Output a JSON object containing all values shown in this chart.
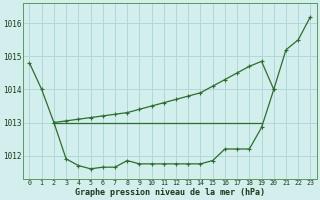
{
  "xlabel": "Graphe pression niveau de la mer (hPa)",
  "background_color": "#d2eeed",
  "grid_color": "#b0d8d8",
  "line_color": "#2d6e2d",
  "hours": [
    0,
    1,
    2,
    3,
    4,
    5,
    6,
    7,
    8,
    9,
    10,
    11,
    12,
    13,
    14,
    15,
    16,
    17,
    18,
    19,
    20,
    21,
    22,
    23
  ],
  "line_flat": [
    null,
    null,
    1013.0,
    1013.0,
    1013.0,
    1013.0,
    1013.0,
    1013.0,
    1013.0,
    1013.0,
    1013.0,
    1013.0,
    1013.0,
    1013.0,
    1013.0,
    1013.0,
    1013.0,
    1013.0,
    1013.0,
    1013.0,
    null,
    null,
    null,
    null
  ],
  "line_drop": [
    1014.8,
    1014.0,
    1013.0,
    1011.9,
    1011.7,
    1011.6,
    1011.65,
    1011.65,
    1011.85,
    1011.75,
    1011.75,
    1011.75,
    1011.75,
    1011.75,
    1011.75,
    1011.85,
    1012.2,
    1012.2,
    1012.2,
    1012.85,
    1014.0,
    null,
    null,
    null
  ],
  "line_rise": [
    null,
    null,
    1013.0,
    1013.05,
    1013.1,
    1013.15,
    1013.2,
    1013.25,
    1013.3,
    1013.4,
    1013.5,
    1013.6,
    1013.7,
    1013.8,
    1013.9,
    1014.1,
    1014.3,
    1014.5,
    1014.7,
    1014.85,
    1014.0,
    1015.2,
    1015.5,
    1016.2
  ],
  "ylim": [
    1011.3,
    1016.6
  ],
  "yticks": [
    1012,
    1013,
    1014,
    1015,
    1016
  ],
  "marker": "+",
  "marker_size": 3.5,
  "line_width": 0.9
}
